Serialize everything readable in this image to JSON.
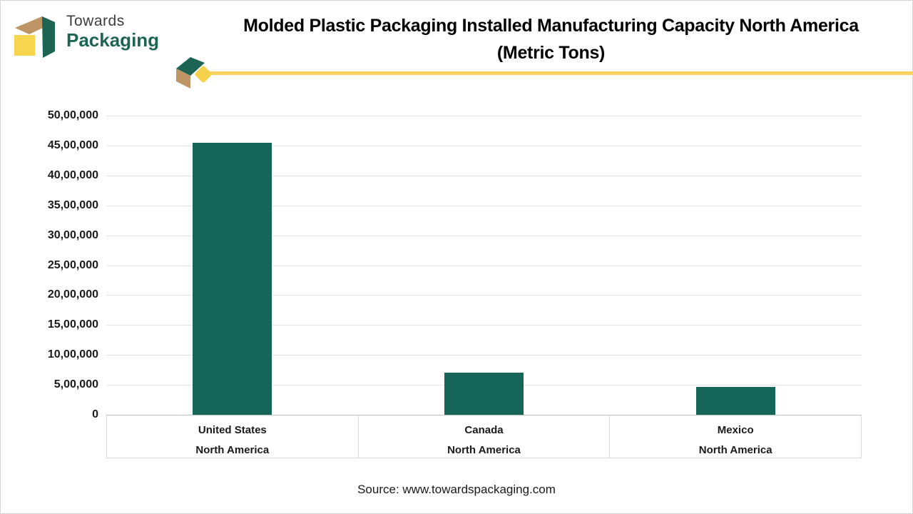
{
  "logo": {
    "line1": "Towards",
    "line2": "Packaging"
  },
  "header": {
    "title_line1": "Molded Plastic Packaging Installed Manufacturing Capacity North America",
    "title_line2": "(Metric Tons)"
  },
  "chart_data": {
    "type": "bar",
    "title": "Molded Plastic Packaging Installed Manufacturing Capacity North America (Metric Tons)",
    "categories": [
      "United States",
      "Canada",
      "Mexico"
    ],
    "category_sublabel": "North America",
    "values": [
      4550000,
      700000,
      470000
    ],
    "xlabel": "",
    "ylabel": "",
    "ylim": [
      0,
      5000000
    ],
    "ytick_interval": 500000,
    "ytick_labels": [
      "0",
      "5,00,000",
      "10,00,000",
      "15,00,000",
      "20,00,000",
      "25,00,000",
      "30,00,000",
      "35,00,000",
      "40,00,000",
      "45,00,000",
      "50,00,000"
    ],
    "number_format": "indian-grouping",
    "grid": true,
    "legend": "none",
    "bar_color": "#156658"
  },
  "footer": {
    "source": "Source: www.towardspackaging.com"
  },
  "colors": {
    "accent_line": "#f5d35e",
    "logo_green": "#1d6455",
    "logo_tan": "#be9666",
    "logo_yellow": "#f8d54e",
    "arrow_green": "#1d6455",
    "arrow_tan": "#be9666",
    "arrow_yellow": "#f6d24c"
  }
}
